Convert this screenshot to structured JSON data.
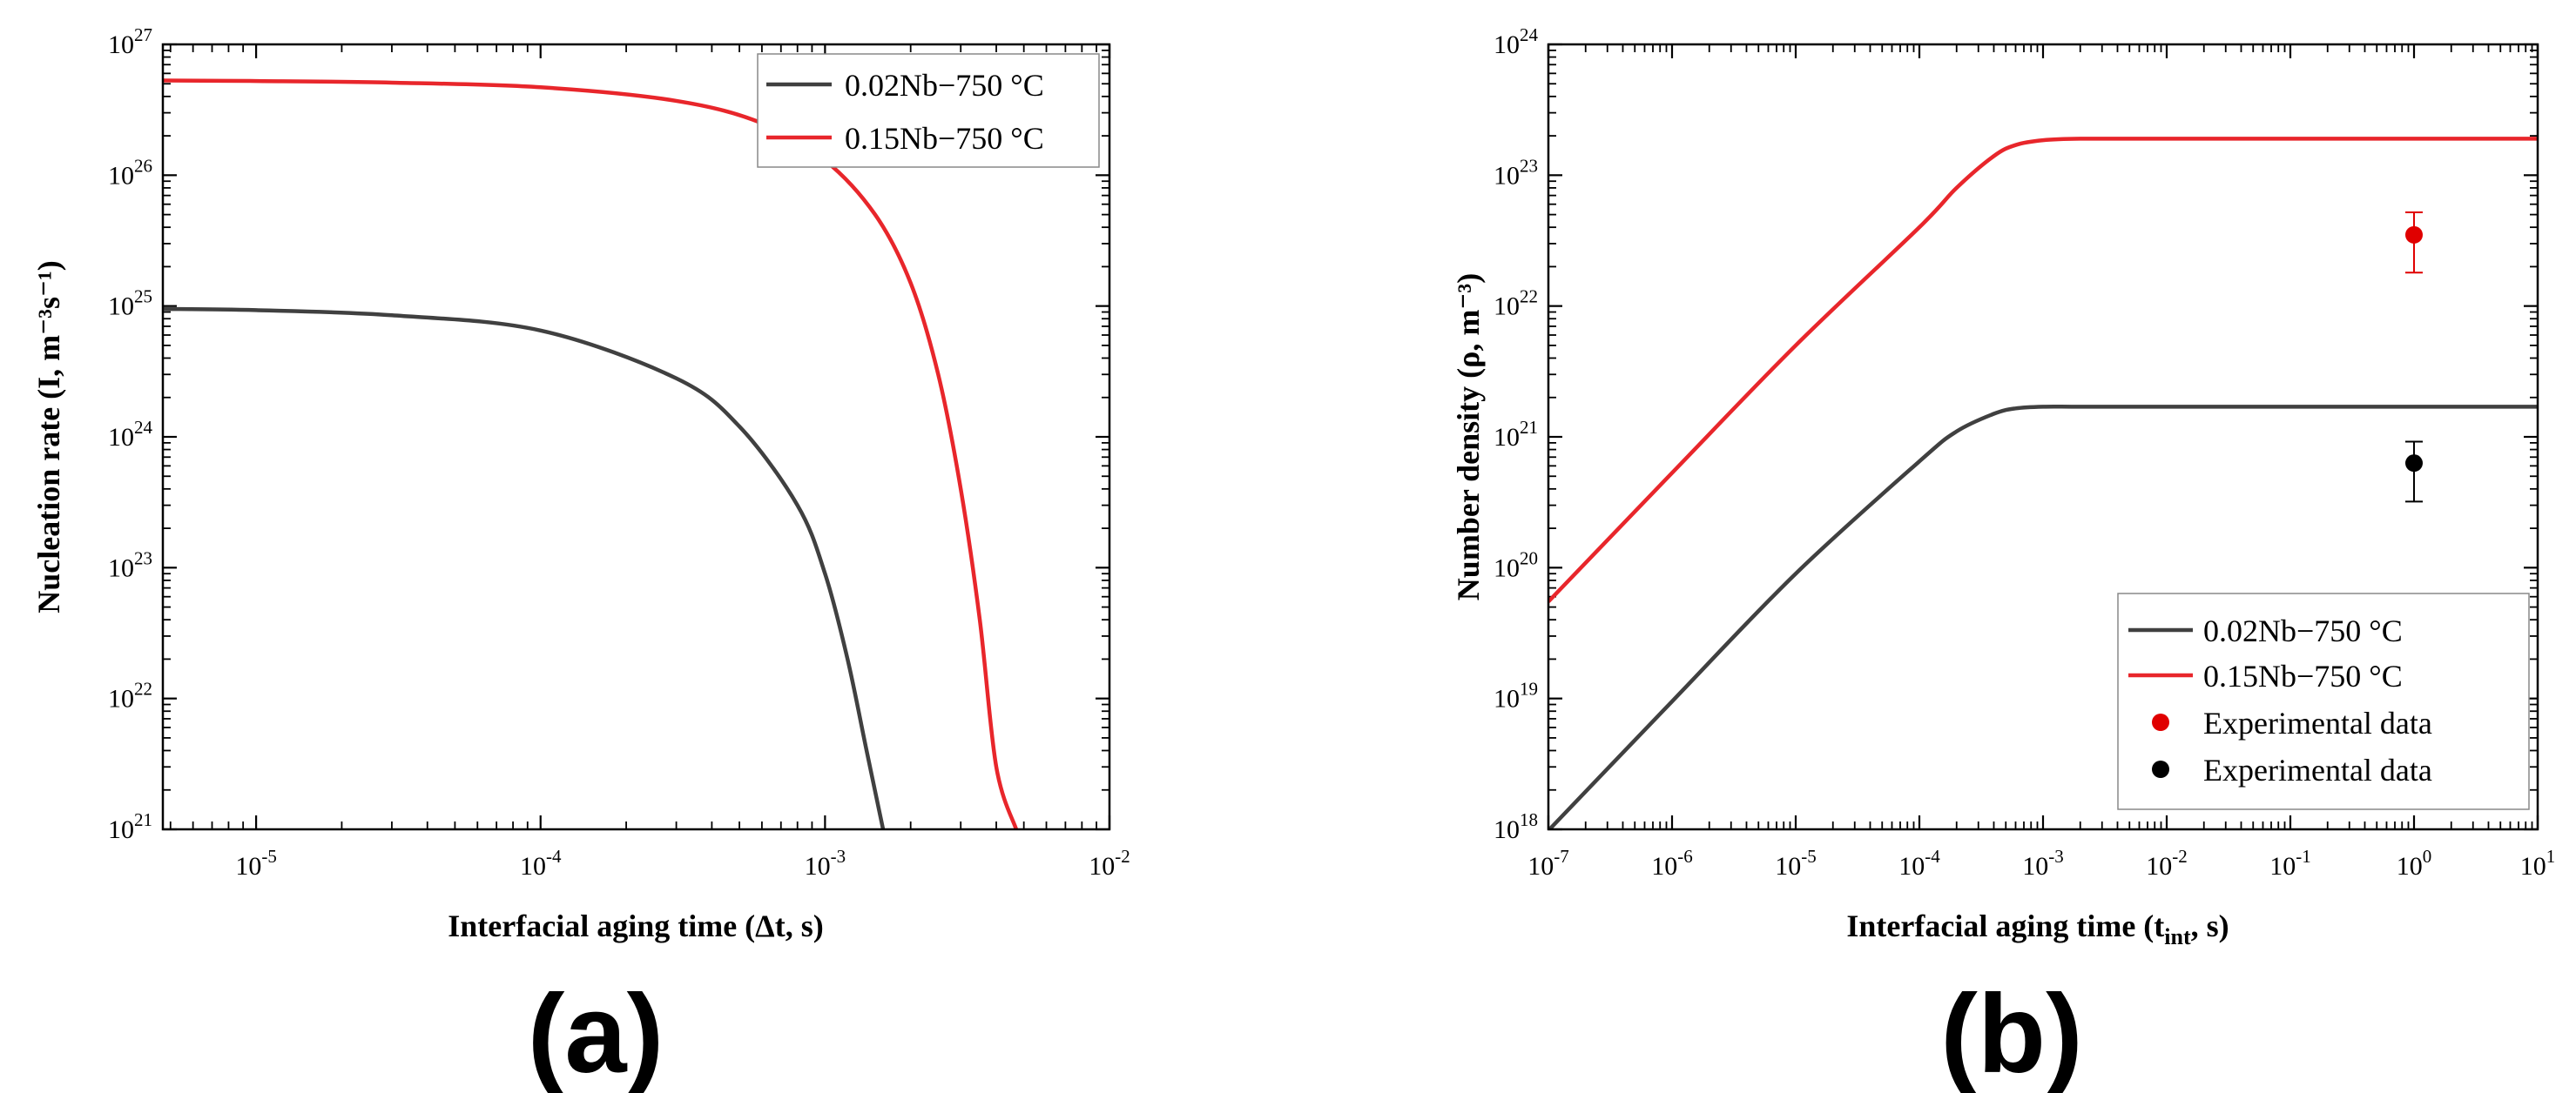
{
  "colors": {
    "black_series": "#404040",
    "red_series": "#e8262b",
    "marker_red": "#e00000",
    "marker_black": "#000000",
    "axis": "#000000"
  },
  "chart_data": [
    {
      "id": "a",
      "type": "line",
      "panel_label": "(a)",
      "xlabel": "Interfacial aging time (Δt, s)",
      "ylabel": "Nucleation rate (I, m⁻³s⁻¹)",
      "x_scale": "log",
      "y_scale": "log",
      "xlim": [
        4.7e-06,
        0.01
      ],
      "ylim": [
        1e+21,
        1e+27
      ],
      "x_ticks": [
        {
          "value": 1e-05,
          "base": "10",
          "exp": "-5"
        },
        {
          "value": 0.0001,
          "base": "10",
          "exp": "-4"
        },
        {
          "value": 0.001,
          "base": "10",
          "exp": "-3"
        },
        {
          "value": 0.01,
          "base": "10",
          "exp": "-2"
        }
      ],
      "y_ticks": [
        {
          "value": 1e+21,
          "base": "10",
          "exp": "21"
        },
        {
          "value": 1e+22,
          "base": "10",
          "exp": "22"
        },
        {
          "value": 1e+23,
          "base": "10",
          "exp": "23"
        },
        {
          "value": 1e+24,
          "base": "10",
          "exp": "24"
        },
        {
          "value": 1e+25,
          "base": "10",
          "exp": "25"
        },
        {
          "value": 1e+26,
          "base": "10",
          "exp": "26"
        },
        {
          "value": 1e+27,
          "base": "10",
          "exp": "27"
        }
      ],
      "legend_position": "top-right",
      "series": [
        {
          "name": "0.02Nb−750 °C",
          "color": "#404040",
          "kind": "line",
          "x": [
            4.7e-06,
            1e-05,
            3e-05,
            0.0001,
            0.0003,
            0.0005,
            0.0008,
            0.001,
            0.0012,
            0.0014,
            0.0016
          ],
          "y": [
            9.5e+24,
            9.3e+24,
            8.5e+24,
            6.5e+24,
            2.8e+24,
            1.2e+24,
            3e+23,
            9e+22,
            2e+22,
            4e+21,
            1e+21
          ]
        },
        {
          "name": "0.15Nb−750 °C",
          "color": "#e8262b",
          "kind": "line",
          "x": [
            4.7e-06,
            1e-05,
            3e-05,
            0.0001,
            0.0003,
            0.0006,
            0.001,
            0.0015,
            0.002,
            0.0025,
            0.003,
            0.0035,
            0.004,
            0.0047
          ],
          "y": [
            5.3e+26,
            5.25e+26,
            5.1e+26,
            4.7e+26,
            3.7e+26,
            2.5e+26,
            1.3e+26,
            5e+25,
            1.5e+25,
            3e+24,
            4e+23,
            4e+22,
            3e+21,
            1e+21
          ]
        }
      ]
    },
    {
      "id": "b",
      "type": "line",
      "panel_label": "(b)",
      "xlabel_main": "Interfacial aging time (t",
      "xlabel_sub": "int",
      "xlabel_end": ", s)",
      "ylabel": "Number density (ρ, m⁻³)",
      "x_scale": "log",
      "y_scale": "log",
      "xlim": [
        1e-07,
        10
      ],
      "ylim": [
        1e+18,
        1e+24
      ],
      "x_ticks": [
        {
          "value": 1e-07,
          "base": "10",
          "exp": "-7"
        },
        {
          "value": 1e-06,
          "base": "10",
          "exp": "-6"
        },
        {
          "value": 1e-05,
          "base": "10",
          "exp": "-5"
        },
        {
          "value": 0.0001,
          "base": "10",
          "exp": "-4"
        },
        {
          "value": 0.001,
          "base": "10",
          "exp": "-3"
        },
        {
          "value": 0.01,
          "base": "10",
          "exp": "-2"
        },
        {
          "value": 0.1,
          "base": "10",
          "exp": "-1"
        },
        {
          "value": 1,
          "base": "10",
          "exp": "0"
        },
        {
          "value": 10,
          "base": "10",
          "exp": "1"
        }
      ],
      "y_ticks": [
        {
          "value": 1e+18,
          "base": "10",
          "exp": "18"
        },
        {
          "value": 1e+19,
          "base": "10",
          "exp": "19"
        },
        {
          "value": 1e+20,
          "base": "10",
          "exp": "20"
        },
        {
          "value": 1e+21,
          "base": "10",
          "exp": "21"
        },
        {
          "value": 1e+22,
          "base": "10",
          "exp": "22"
        },
        {
          "value": 1e+23,
          "base": "10",
          "exp": "23"
        },
        {
          "value": 1e+24,
          "base": "10",
          "exp": "24"
        }
      ],
      "legend_position": "bottom-right",
      "series": [
        {
          "name": "0.02Nb−750 °C",
          "color": "#404040",
          "kind": "line",
          "x": [
            1e-07,
            1e-06,
            1e-05,
            0.0001,
            0.0002,
            0.0004,
            0.0006,
            0.001,
            0.002,
            0.01,
            1,
            10
          ],
          "y": [
            9.8e+17,
            9.5e+18,
            9e+19,
            6.5e+20,
            1.1e+21,
            1.5e+21,
            1.65e+21,
            1.7e+21,
            1.7e+21,
            1.7e+21,
            1.7e+21,
            1.7e+21
          ]
        },
        {
          "name": "0.15Nb−750 °C",
          "color": "#e8262b",
          "kind": "line",
          "x": [
            1e-07,
            1e-06,
            1e-05,
            0.0001,
            0.0002,
            0.0004,
            0.0006,
            0.001,
            0.002,
            0.01,
            1,
            10
          ],
          "y": [
            5.5e+19,
            5.3e+20,
            5e+21,
            4e+22,
            8e+22,
            1.4e+23,
            1.7e+23,
            1.85e+23,
            1.9e+23,
            1.9e+23,
            1.9e+23,
            1.9e+23
          ]
        },
        {
          "name": "Experimental data",
          "color": "#e00000",
          "kind": "points",
          "x": [
            1
          ],
          "y": [
            3.5e+22
          ],
          "y_err_low": [
            1.8e+22
          ],
          "y_err_high": [
            5.2e+22
          ]
        },
        {
          "name": "Experimental data",
          "color": "#000000",
          "kind": "points",
          "x": [
            1
          ],
          "y": [
            6.3e+20
          ],
          "y_err_low": [
            3.2e+20
          ],
          "y_err_high": [
            9.2e+20
          ]
        }
      ]
    }
  ]
}
